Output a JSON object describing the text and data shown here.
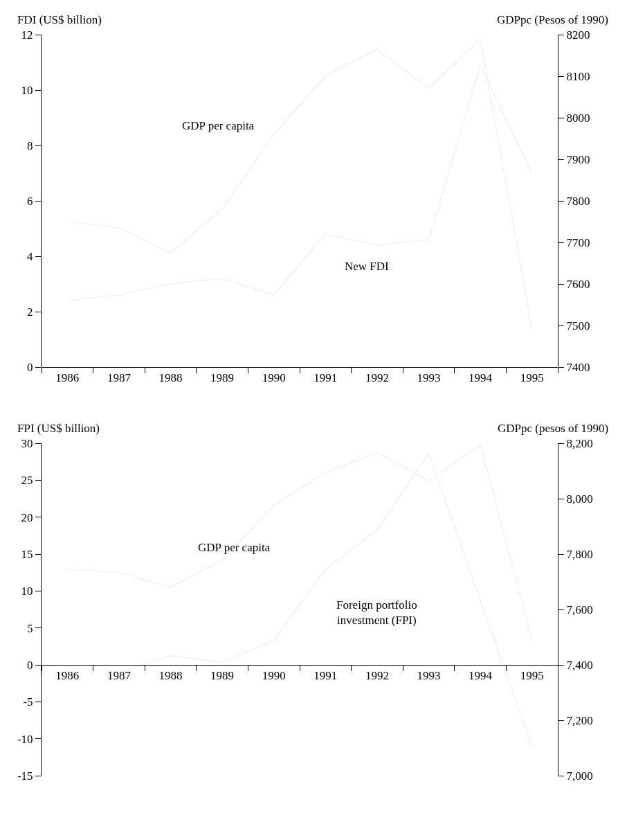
{
  "chart_data": [
    {
      "type": "line",
      "ylabel": "FDI (US$ billion)",
      "y2label": "GDPpc (Pesos of 1990)",
      "categories": [
        "1986",
        "1987",
        "1988",
        "1989",
        "1990",
        "1991",
        "1992",
        "1993",
        "1994",
        "1995"
      ],
      "ylim": [
        0,
        12
      ],
      "yticks": [
        0,
        2,
        4,
        6,
        8,
        10,
        12
      ],
      "y2lim": [
        7400,
        8200
      ],
      "y2ticks": [
        7400,
        7500,
        7600,
        7700,
        7800,
        7900,
        8000,
        8100,
        8200
      ],
      "series": [
        {
          "color": "#eeeeee",
          "axis": "y2",
          "values": [
            7750,
            7735,
            7675,
            7780,
            7960,
            8100,
            8165,
            8070,
            8190,
            7490
          ]
        },
        {
          "color": "#eeeeee",
          "values": [
            2.4,
            2.6,
            3.0,
            3.2,
            2.6,
            4.8,
            4.4,
            4.6,
            10.9,
            7.0
          ]
        }
      ],
      "annotations": [
        "GDP per capita",
        "New FDI"
      ]
    },
    {
      "type": "line",
      "ylabel": "FPI (US$ billion)",
      "y2label": "GDPpc (pesos of 1990)",
      "categories": [
        "1986",
        "1987",
        "1988",
        "1989",
        "1990",
        "1991",
        "1992",
        "1993",
        "1994",
        "1995"
      ],
      "ylim": [
        -15,
        30
      ],
      "yticks": [
        -15,
        -10,
        -5,
        0,
        5,
        10,
        15,
        20,
        25,
        30
      ],
      "y2lim": [
        7000,
        8200
      ],
      "y2ticks": [
        {
          "value": 7000,
          "label": "7,000"
        },
        {
          "value": 7200,
          "label": "7,200"
        },
        {
          "value": 7400,
          "label": "7,400"
        },
        {
          "value": 7600,
          "label": "7,600"
        },
        {
          "value": 7800,
          "label": "7,800"
        },
        {
          "value": 8000,
          "label": "8,000"
        },
        {
          "value": 8200,
          "label": "8,200"
        }
      ],
      "series": [
        {
          "color": "#eeeeee",
          "axis": "y2",
          "values": [
            7745,
            7735,
            7680,
            7780,
            7975,
            8095,
            8165,
            8065,
            8195,
            7490
          ]
        },
        {
          "color": "#eeeeee",
          "values": [
            -0.3,
            -1.0,
            1.2,
            0.4,
            3.3,
            12.9,
            18.3,
            28.6,
            8.7,
            -11
          ]
        }
      ],
      "annotations": [
        "GDP per capita",
        "Foreign portfolio investment (FPI)"
      ]
    }
  ]
}
